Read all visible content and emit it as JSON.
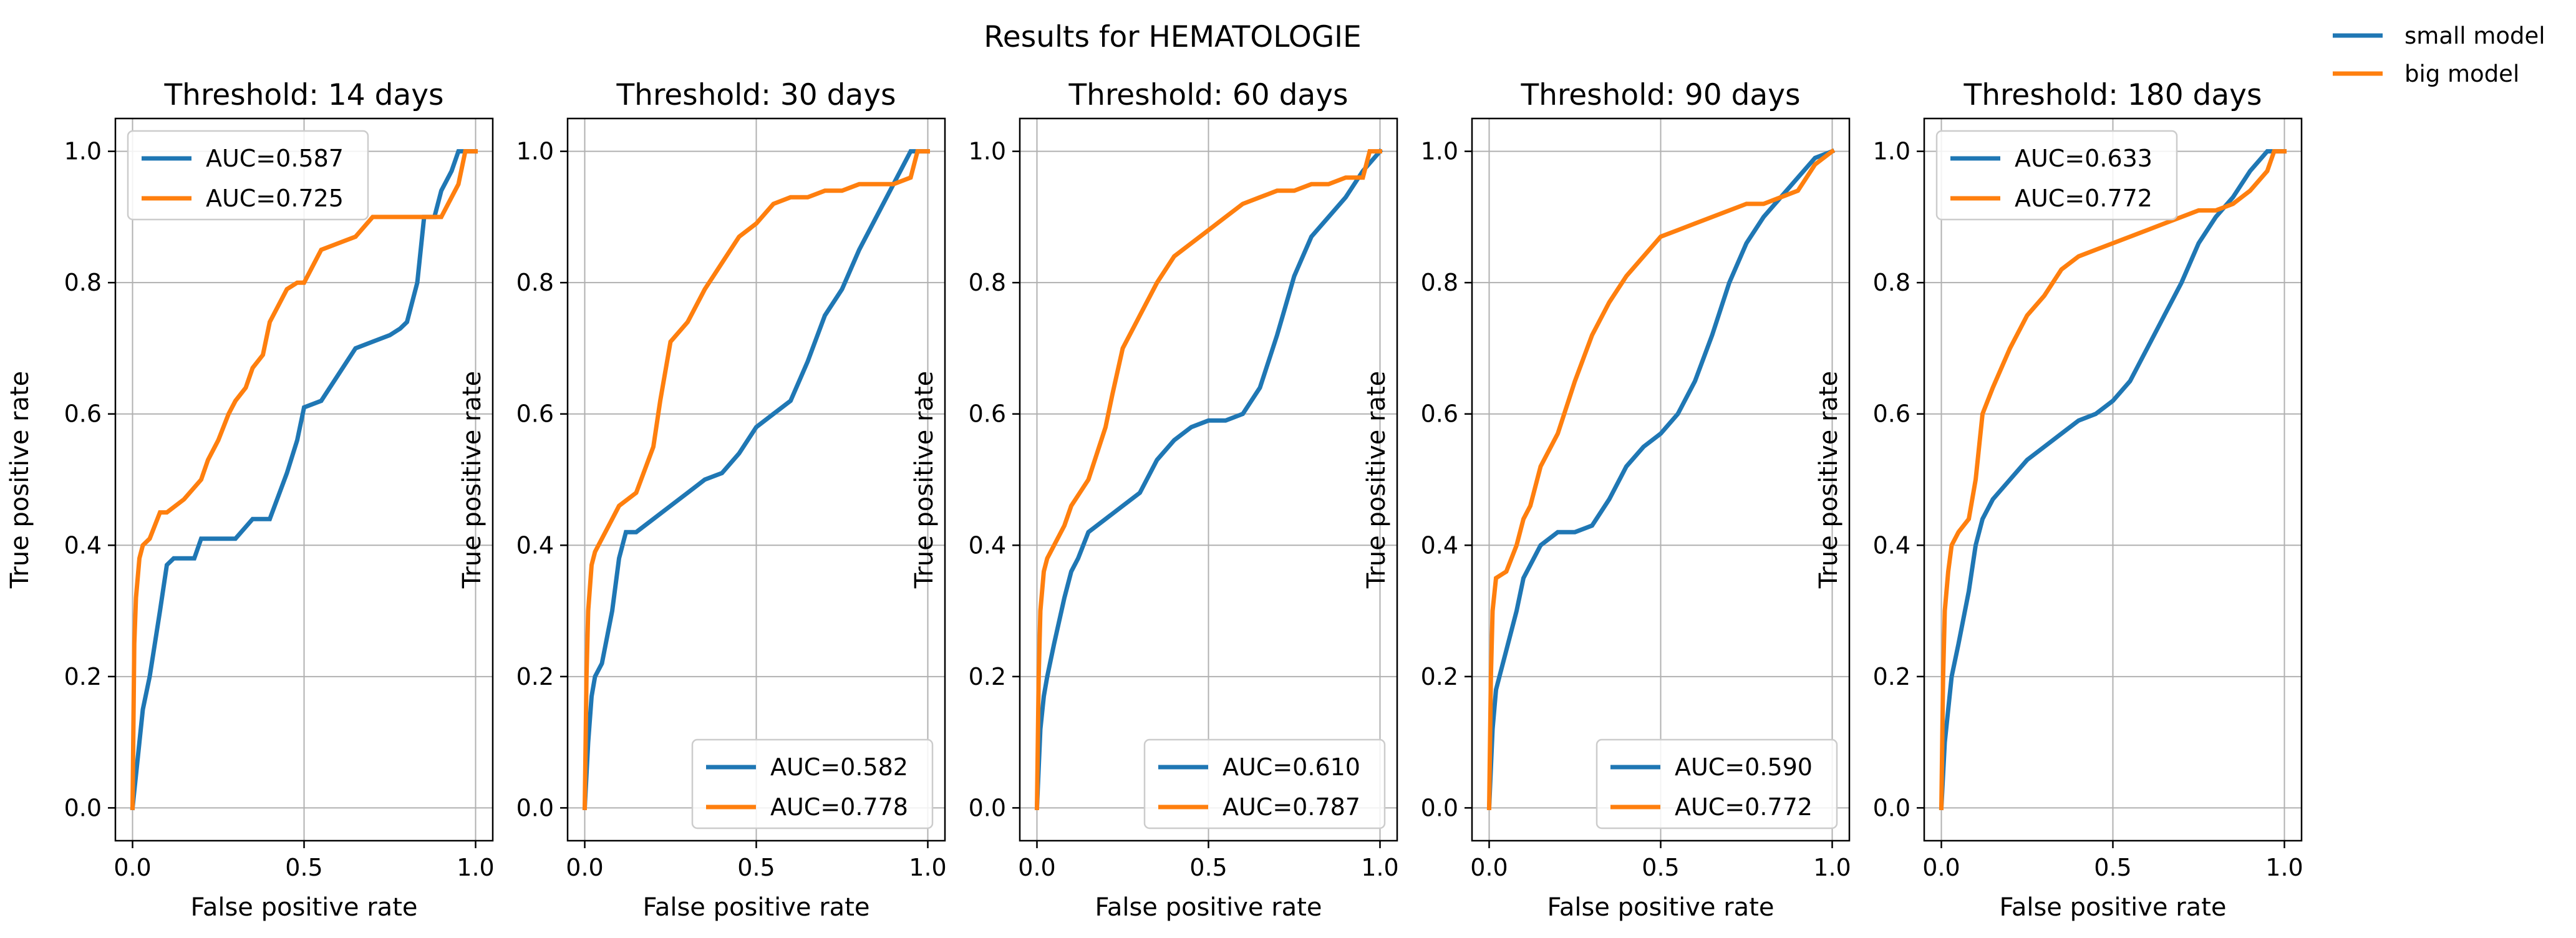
{
  "suptitle": "Results for HEMATOLOGIE",
  "figure_legend": [
    {
      "label": "small model",
      "color": "#1f77b4"
    },
    {
      "label": "big model",
      "color": "#ff7f0e"
    }
  ],
  "colors": {
    "small": "#1f77b4",
    "big": "#ff7f0e",
    "grid": "#b0b0b0"
  },
  "chart_data": [
    {
      "type": "line",
      "title": "Threshold: 14 days",
      "xlabel": "False positive rate",
      "ylabel": "True positive rate",
      "xlim": [
        -0.05,
        1.05
      ],
      "ylim": [
        -0.05,
        1.05
      ],
      "xticks": [
        "0.0",
        "0.5",
        "1.0"
      ],
      "yticks": [
        "0.0",
        "0.2",
        "0.4",
        "0.6",
        "0.8",
        "1.0"
      ],
      "grid": true,
      "legend_location": "upper left",
      "series": [
        {
          "key": "small",
          "legend": "AUC=0.587",
          "x": [
            0,
            0.01,
            0.02,
            0.03,
            0.05,
            0.08,
            0.1,
            0.12,
            0.15,
            0.18,
            0.2,
            0.25,
            0.3,
            0.35,
            0.4,
            0.45,
            0.48,
            0.5,
            0.55,
            0.6,
            0.65,
            0.7,
            0.75,
            0.78,
            0.8,
            0.83,
            0.85,
            0.88,
            0.9,
            0.93,
            0.95,
            0.97,
            1.0
          ],
          "y": [
            0,
            0.05,
            0.1,
            0.15,
            0.2,
            0.3,
            0.37,
            0.38,
            0.38,
            0.38,
            0.41,
            0.41,
            0.41,
            0.44,
            0.44,
            0.51,
            0.56,
            0.61,
            0.62,
            0.66,
            0.7,
            0.71,
            0.72,
            0.73,
            0.74,
            0.8,
            0.9,
            0.9,
            0.94,
            0.97,
            1.0,
            1.0,
            1.0
          ]
        },
        {
          "key": "big",
          "legend": "AUC=0.725",
          "x": [
            0,
            0.005,
            0.01,
            0.02,
            0.03,
            0.05,
            0.08,
            0.1,
            0.15,
            0.2,
            0.22,
            0.25,
            0.28,
            0.3,
            0.33,
            0.35,
            0.38,
            0.4,
            0.45,
            0.48,
            0.5,
            0.55,
            0.6,
            0.65,
            0.7,
            0.75,
            0.8,
            0.85,
            0.9,
            0.95,
            0.97,
            1.0
          ],
          "y": [
            0,
            0.25,
            0.32,
            0.38,
            0.4,
            0.41,
            0.45,
            0.45,
            0.47,
            0.5,
            0.53,
            0.56,
            0.6,
            0.62,
            0.64,
            0.67,
            0.69,
            0.74,
            0.79,
            0.8,
            0.8,
            0.85,
            0.86,
            0.87,
            0.9,
            0.9,
            0.9,
            0.9,
            0.9,
            0.95,
            1.0,
            1.0
          ]
        }
      ]
    },
    {
      "type": "line",
      "title": "Threshold: 30 days",
      "xlabel": "False positive rate",
      "ylabel": "True positive rate",
      "xlim": [
        -0.05,
        1.05
      ],
      "ylim": [
        -0.05,
        1.05
      ],
      "xticks": [
        "0.0",
        "0.5",
        "1.0"
      ],
      "yticks": [
        "0.0",
        "0.2",
        "0.4",
        "0.6",
        "0.8",
        "1.0"
      ],
      "grid": true,
      "legend_location": "lower right",
      "series": [
        {
          "key": "small",
          "legend": "AUC=0.582",
          "x": [
            0,
            0.01,
            0.02,
            0.03,
            0.05,
            0.08,
            0.1,
            0.12,
            0.15,
            0.2,
            0.25,
            0.3,
            0.35,
            0.4,
            0.45,
            0.5,
            0.55,
            0.6,
            0.65,
            0.7,
            0.75,
            0.8,
            0.85,
            0.9,
            0.95,
            0.97,
            1.0
          ],
          "y": [
            0,
            0.1,
            0.17,
            0.2,
            0.22,
            0.3,
            0.38,
            0.42,
            0.42,
            0.44,
            0.46,
            0.48,
            0.5,
            0.51,
            0.54,
            0.58,
            0.6,
            0.62,
            0.68,
            0.75,
            0.79,
            0.85,
            0.9,
            0.95,
            1.0,
            1.0,
            1.0
          ]
        },
        {
          "key": "big",
          "legend": "AUC=0.778",
          "x": [
            0,
            0.005,
            0.01,
            0.02,
            0.03,
            0.05,
            0.08,
            0.1,
            0.15,
            0.2,
            0.22,
            0.25,
            0.3,
            0.35,
            0.4,
            0.45,
            0.5,
            0.55,
            0.6,
            0.65,
            0.7,
            0.75,
            0.8,
            0.85,
            0.9,
            0.95,
            0.97,
            1.0
          ],
          "y": [
            0,
            0.2,
            0.3,
            0.37,
            0.39,
            0.41,
            0.44,
            0.46,
            0.48,
            0.55,
            0.62,
            0.71,
            0.74,
            0.79,
            0.83,
            0.87,
            0.89,
            0.92,
            0.93,
            0.93,
            0.94,
            0.94,
            0.95,
            0.95,
            0.95,
            0.96,
            1.0,
            1.0
          ]
        }
      ]
    },
    {
      "type": "line",
      "title": "Threshold: 60 days",
      "xlabel": "False positive rate",
      "ylabel": "True positive rate",
      "xlim": [
        -0.05,
        1.05
      ],
      "ylim": [
        -0.05,
        1.05
      ],
      "xticks": [
        "0.0",
        "0.5",
        "1.0"
      ],
      "yticks": [
        "0.0",
        "0.2",
        "0.4",
        "0.6",
        "0.8",
        "1.0"
      ],
      "grid": true,
      "legend_location": "lower right",
      "series": [
        {
          "key": "small",
          "legend": "AUC=0.610",
          "x": [
            0,
            0.01,
            0.02,
            0.03,
            0.05,
            0.08,
            0.1,
            0.12,
            0.15,
            0.2,
            0.25,
            0.3,
            0.35,
            0.4,
            0.45,
            0.5,
            0.55,
            0.6,
            0.65,
            0.7,
            0.75,
            0.8,
            0.85,
            0.9,
            0.95,
            1.0
          ],
          "y": [
            0,
            0.12,
            0.17,
            0.2,
            0.25,
            0.32,
            0.36,
            0.38,
            0.42,
            0.44,
            0.46,
            0.48,
            0.53,
            0.56,
            0.58,
            0.59,
            0.59,
            0.6,
            0.64,
            0.72,
            0.81,
            0.87,
            0.9,
            0.93,
            0.97,
            1.0
          ]
        },
        {
          "key": "big",
          "legend": "AUC=0.787",
          "x": [
            0,
            0.005,
            0.01,
            0.02,
            0.03,
            0.05,
            0.08,
            0.1,
            0.15,
            0.2,
            0.22,
            0.25,
            0.3,
            0.35,
            0.4,
            0.45,
            0.5,
            0.55,
            0.6,
            0.65,
            0.7,
            0.75,
            0.8,
            0.85,
            0.9,
            0.95,
            0.97,
            1.0
          ],
          "y": [
            0,
            0.2,
            0.3,
            0.36,
            0.38,
            0.4,
            0.43,
            0.46,
            0.5,
            0.58,
            0.63,
            0.7,
            0.75,
            0.8,
            0.84,
            0.86,
            0.88,
            0.9,
            0.92,
            0.93,
            0.94,
            0.94,
            0.95,
            0.95,
            0.96,
            0.96,
            1.0,
            1.0
          ]
        }
      ]
    },
    {
      "type": "line",
      "title": "Threshold: 90 days",
      "xlabel": "False positive rate",
      "ylabel": "True positive rate",
      "xlim": [
        -0.05,
        1.05
      ],
      "ylim": [
        -0.05,
        1.05
      ],
      "xticks": [
        "0.0",
        "0.5",
        "1.0"
      ],
      "yticks": [
        "0.0",
        "0.2",
        "0.4",
        "0.6",
        "0.8",
        "1.0"
      ],
      "grid": true,
      "legend_location": "lower right",
      "series": [
        {
          "key": "small",
          "legend": "AUC=0.590",
          "x": [
            0,
            0.01,
            0.02,
            0.03,
            0.05,
            0.08,
            0.1,
            0.12,
            0.15,
            0.2,
            0.25,
            0.3,
            0.35,
            0.4,
            0.45,
            0.5,
            0.55,
            0.6,
            0.65,
            0.7,
            0.75,
            0.8,
            0.85,
            0.9,
            0.95,
            1.0
          ],
          "y": [
            0,
            0.12,
            0.18,
            0.2,
            0.24,
            0.3,
            0.35,
            0.37,
            0.4,
            0.42,
            0.42,
            0.43,
            0.47,
            0.52,
            0.55,
            0.57,
            0.6,
            0.65,
            0.72,
            0.8,
            0.86,
            0.9,
            0.93,
            0.96,
            0.99,
            1.0
          ]
        },
        {
          "key": "big",
          "legend": "AUC=0.772",
          "x": [
            0,
            0.005,
            0.01,
            0.02,
            0.05,
            0.08,
            0.1,
            0.12,
            0.15,
            0.2,
            0.25,
            0.3,
            0.35,
            0.4,
            0.45,
            0.5,
            0.55,
            0.6,
            0.65,
            0.7,
            0.75,
            0.8,
            0.85,
            0.9,
            0.95,
            1.0
          ],
          "y": [
            0,
            0.2,
            0.3,
            0.35,
            0.36,
            0.4,
            0.44,
            0.46,
            0.52,
            0.57,
            0.65,
            0.72,
            0.77,
            0.81,
            0.84,
            0.87,
            0.88,
            0.89,
            0.9,
            0.91,
            0.92,
            0.92,
            0.93,
            0.94,
            0.98,
            1.0
          ]
        }
      ]
    },
    {
      "type": "line",
      "title": "Threshold: 180 days",
      "xlabel": "False positive rate",
      "ylabel": "True positive rate",
      "xlim": [
        -0.05,
        1.05
      ],
      "ylim": [
        -0.05,
        1.05
      ],
      "xticks": [
        "0.0",
        "0.5",
        "1.0"
      ],
      "yticks": [
        "0.0",
        "0.2",
        "0.4",
        "0.6",
        "0.8",
        "1.0"
      ],
      "grid": true,
      "legend_location": "upper left",
      "series": [
        {
          "key": "small",
          "legend": "AUC=0.633",
          "x": [
            0,
            0.01,
            0.02,
            0.03,
            0.05,
            0.08,
            0.1,
            0.12,
            0.15,
            0.2,
            0.25,
            0.3,
            0.35,
            0.4,
            0.45,
            0.5,
            0.55,
            0.6,
            0.65,
            0.7,
            0.75,
            0.8,
            0.85,
            0.9,
            0.95,
            1.0
          ],
          "y": [
            0,
            0.1,
            0.15,
            0.2,
            0.25,
            0.33,
            0.4,
            0.44,
            0.47,
            0.5,
            0.53,
            0.55,
            0.57,
            0.59,
            0.6,
            0.62,
            0.65,
            0.7,
            0.75,
            0.8,
            0.86,
            0.9,
            0.93,
            0.97,
            1.0,
            1.0
          ]
        },
        {
          "key": "big",
          "legend": "AUC=0.772",
          "x": [
            0,
            0.005,
            0.01,
            0.02,
            0.03,
            0.05,
            0.08,
            0.1,
            0.12,
            0.15,
            0.2,
            0.25,
            0.3,
            0.35,
            0.4,
            0.45,
            0.5,
            0.55,
            0.6,
            0.65,
            0.7,
            0.75,
            0.8,
            0.85,
            0.9,
            0.95,
            0.97,
            1.0
          ],
          "y": [
            0,
            0.2,
            0.3,
            0.36,
            0.4,
            0.42,
            0.44,
            0.5,
            0.6,
            0.64,
            0.7,
            0.75,
            0.78,
            0.82,
            0.84,
            0.85,
            0.86,
            0.87,
            0.88,
            0.89,
            0.9,
            0.91,
            0.91,
            0.92,
            0.94,
            0.97,
            1.0,
            1.0
          ]
        }
      ]
    }
  ]
}
